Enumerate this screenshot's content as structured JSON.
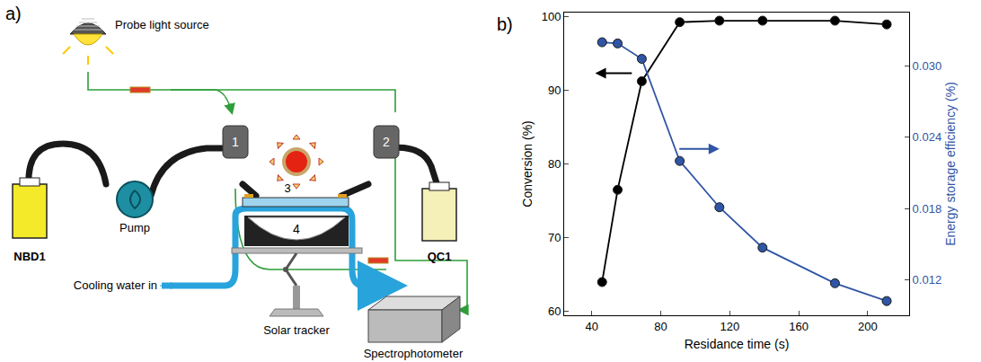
{
  "diagram": {
    "panel_label": "a)",
    "nodes": [
      "Probe light source",
      "NBD1",
      "Pump",
      "1",
      "2",
      "3",
      "4",
      "QC1",
      "Cooling water in",
      "Solar tracker",
      "Spectrophotometer"
    ]
  },
  "chart_data": {
    "type": "line",
    "panel_label": "b)",
    "xlabel": "Residance time (s)",
    "ylabel": "Conversion (%)",
    "y2label": "Energy storage efficiency (%)",
    "x": [
      46,
      55,
      69,
      91,
      114,
      139,
      181,
      211
    ],
    "series": [
      {
        "color": "#000000",
        "marker": "circle",
        "line_style": "solid",
        "values": [
          64,
          76.5,
          91.2,
          99.2,
          99.4,
          99.4,
          99.4,
          98.9
        ]
      },
      {
        "color": "#2f55a4",
        "marker": "circle",
        "line_style": "solid",
        "axis": "y2",
        "values": [
          0.032,
          0.0319,
          0.0306,
          0.022,
          0.0181,
          0.0147,
          0.0117,
          0.0102
        ]
      }
    ],
    "xlim": [
      24,
      224
    ],
    "xticks": [
      40,
      80,
      120,
      160,
      200
    ],
    "ylim": [
      59.5,
      100.5
    ],
    "yticks": [
      60,
      70,
      80,
      90,
      100
    ],
    "y2lim": [
      0.009,
      0.0345
    ],
    "y2ticks": [
      0.012,
      0.018,
      0.024,
      {
        "value": 0.03,
        "label": "0.030"
      }
    ],
    "grid": false,
    "legend": false
  }
}
